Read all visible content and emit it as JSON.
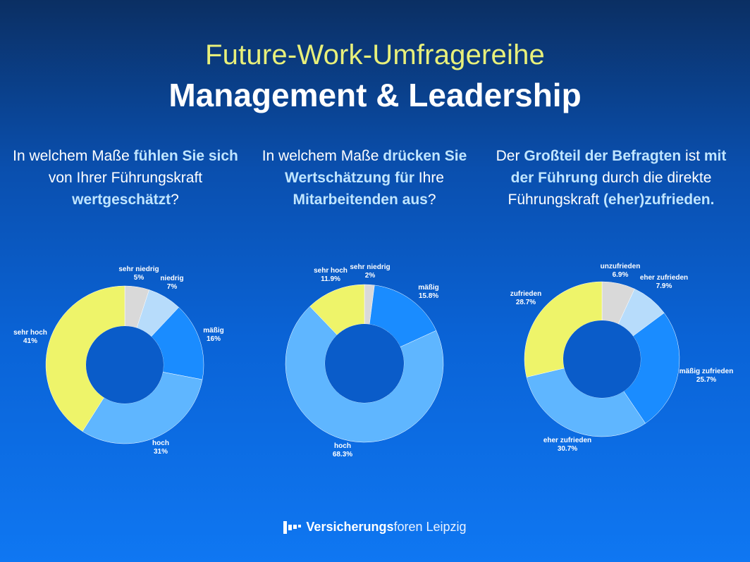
{
  "header": {
    "title": "Future-Work-Umfragereihe",
    "subtitle": "Management & Leadership"
  },
  "questions": [
    {
      "parts": [
        {
          "t": "In welchem Maße ",
          "b": false
        },
        {
          "t": "fühlen Sie sich",
          "b": true
        },
        {
          "t": " von Ihrer Führungskraft ",
          "b": false
        },
        {
          "t": "wertgeschätzt",
          "b": true
        },
        {
          "t": "?",
          "b": false
        }
      ]
    },
    {
      "parts": [
        {
          "t": "In welchem Maße ",
          "b": false
        },
        {
          "t": "drücken Sie Wertschätzung für",
          "b": true
        },
        {
          "t": " Ihre ",
          "b": false
        },
        {
          "t": "Mitarbeitenden aus",
          "b": true
        },
        {
          "t": "?",
          "b": false
        }
      ]
    },
    {
      "parts": [
        {
          "t": "Der ",
          "b": false
        },
        {
          "t": "Großteil der Befragten",
          "b": true
        },
        {
          "t": " ist ",
          "b": false
        },
        {
          "t": "mit der Führung",
          "b": true
        },
        {
          "t": " durch die direkte Führungskraft ",
          "b": false
        },
        {
          "t": "(eher)zufrieden.",
          "b": true
        }
      ]
    }
  ],
  "chart_data": [
    {
      "type": "pie",
      "donut": true,
      "categories": [
        "sehr niedrig",
        "niedrig",
        "mäßig",
        "hoch",
        "sehr hoch"
      ],
      "values": [
        5,
        7,
        16,
        31,
        41
      ],
      "value_labels": [
        "5%",
        "7%",
        "16%",
        "31%",
        "41%"
      ],
      "colors": [
        "#d9d9d9",
        "#b7dcfb",
        "#1a8cff",
        "#5fb6ff",
        "#eef46a"
      ]
    },
    {
      "type": "pie",
      "donut": true,
      "categories": [
        "sehr niedrig",
        "mäßig",
        "hoch",
        "sehr hoch"
      ],
      "values": [
        2,
        15.8,
        68.3,
        11.9
      ],
      "value_labels": [
        "2%",
        "15.8%",
        "68.3%",
        "11.9%"
      ],
      "colors": [
        "#d9d9d9",
        "#1a8cff",
        "#5fb6ff",
        "#eef46a"
      ]
    },
    {
      "type": "pie",
      "donut": true,
      "categories": [
        "unzufrieden",
        "eher zufrieden",
        "mäßig zufrieden",
        "eher zufrieden",
        "zufrieden"
      ],
      "values": [
        6.9,
        7.9,
        25.7,
        30.7,
        28.7
      ],
      "value_labels": [
        "6.9%",
        "7.9%",
        "25.7%",
        "30.7%",
        "28.7%"
      ],
      "colors": [
        "#d9d9d9",
        "#b7dcfb",
        "#1a8cff",
        "#5fb6ff",
        "#eef46a"
      ]
    }
  ],
  "footer": {
    "brand_bold": "Versicherungs",
    "brand_light": "foren Leipzig",
    "logo_icon": "versicherungsforen-logo-icon"
  },
  "colors": {
    "title_accent": "#e8f07a",
    "question_highlight": "#bfe5ff",
    "donut_hole": "#0a5cc9"
  }
}
